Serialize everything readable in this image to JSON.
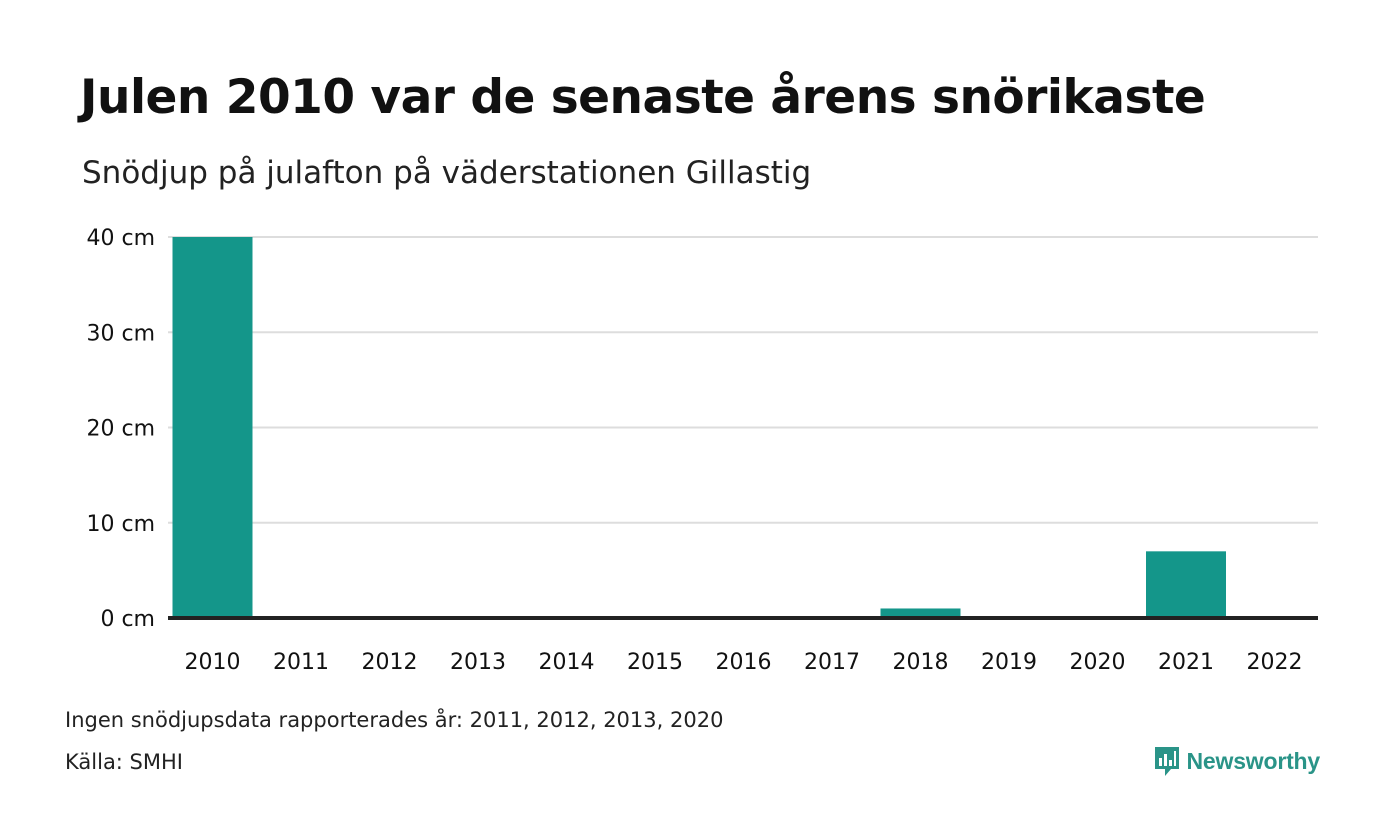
{
  "title": "Julen 2010 var de senaste årens snörikaste",
  "subtitle": "Snödjup på julafton på väderstationen Gillastig",
  "note": "Ingen snödjupsdata rapporterades år: 2011, 2012, 2013, 2020",
  "source": "Källa: SMHI",
  "brand": {
    "name": "Newsworthy",
    "icon": "newsworthy-bar-chart-icon",
    "color": "#2a9488"
  },
  "colors": {
    "bar": "#14968a",
    "grid": "#dddddd",
    "baseline": "#222222",
    "text": "#111111"
  },
  "chart_data": {
    "type": "bar",
    "title": "Julen 2010 var de senaste årens snörikaste",
    "subtitle": "Snödjup på julafton på väderstationen Gillastig",
    "categories": [
      "2010",
      "2011",
      "2012",
      "2013",
      "2014",
      "2015",
      "2016",
      "2017",
      "2018",
      "2019",
      "2020",
      "2021",
      "2022"
    ],
    "values": [
      40,
      null,
      null,
      null,
      0,
      0,
      0,
      0,
      1,
      0,
      null,
      7,
      0
    ],
    "unit": "cm",
    "y_ticks": [
      "0 cm",
      "10 cm",
      "20 cm",
      "30 cm",
      "40 cm"
    ],
    "ylim": [
      0,
      40
    ],
    "grid": true,
    "legend": "none"
  }
}
